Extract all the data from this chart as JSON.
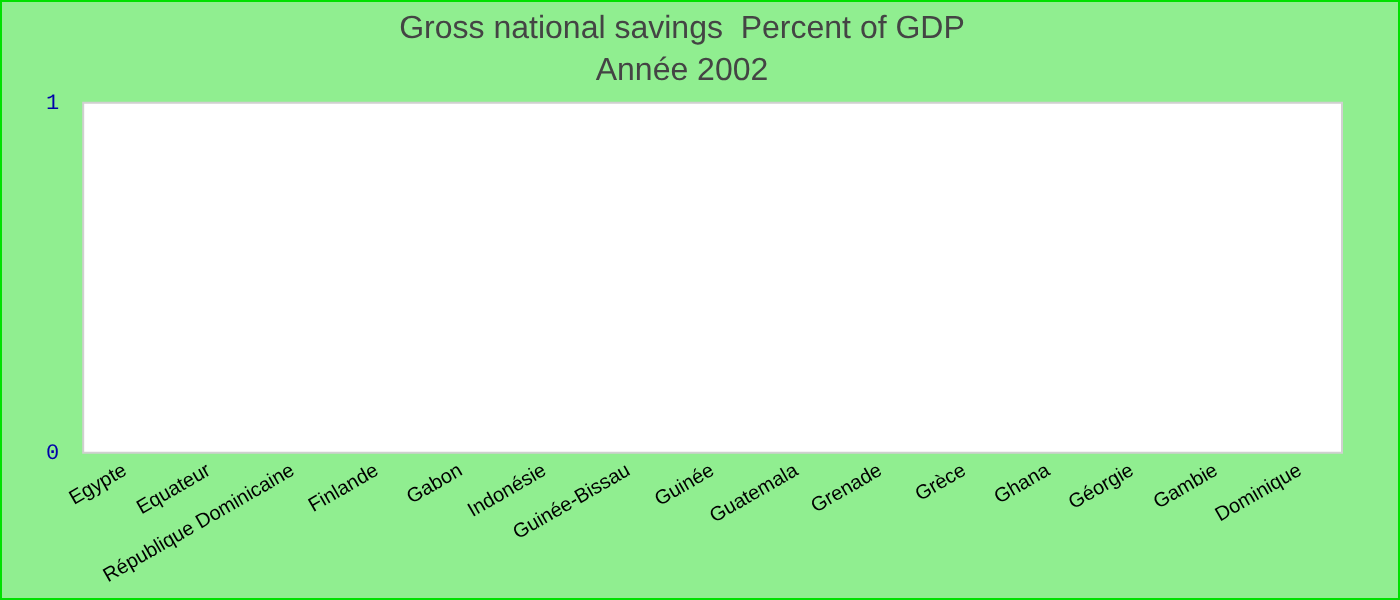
{
  "chart_data": {
    "type": "bar",
    "title": "Gross national savings  Percent of GDP",
    "subtitle": "Année 2002",
    "categories": [
      "Egypte",
      "Equateur",
      "République Dominicaine",
      "Finlande",
      "Gabon",
      "Indonésie",
      "Guinée-Bissau",
      "Guinée",
      "Guatemala",
      "Grenade",
      "Grèce",
      "Ghana",
      "Géorgie",
      "Gambie",
      "Dominique"
    ],
    "values": [
      null,
      null,
      null,
      null,
      null,
      null,
      null,
      null,
      null,
      null,
      null,
      null,
      null,
      null,
      null
    ],
    "ylim": [
      0,
      1
    ],
    "yticks": [
      0,
      1
    ],
    "grid": false,
    "legend": false
  }
}
